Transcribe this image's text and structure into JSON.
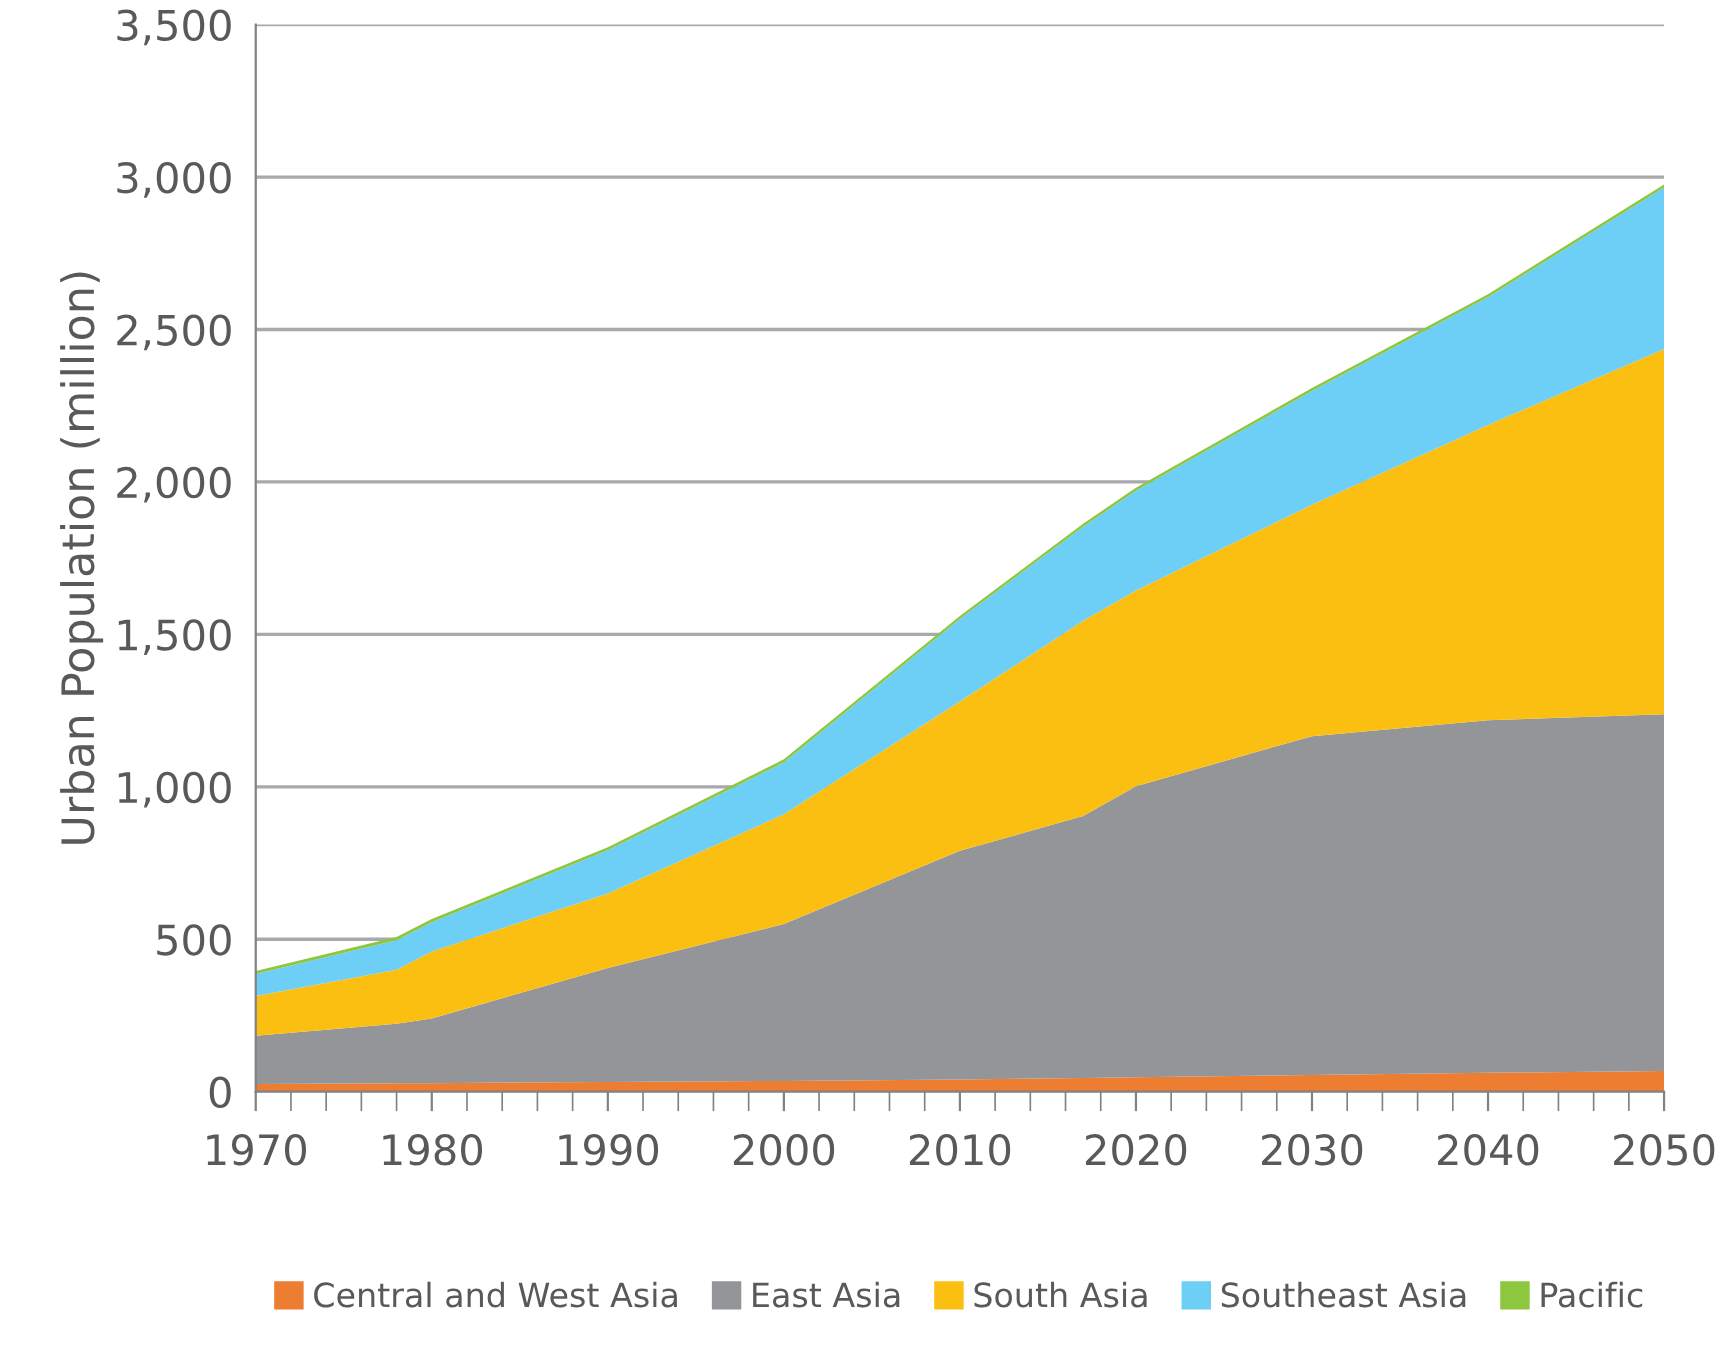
{
  "chart_data": {
    "type": "area",
    "stacked": true,
    "ylabel": "Urban Population (million)",
    "x": [
      1970,
      1978,
      1980,
      1990,
      2000,
      2010,
      2017,
      2020,
      2030,
      2040,
      2050
    ],
    "series": [
      {
        "name": "Central and West Asia",
        "color": "#ed7d31",
        "values": [
          25,
          28,
          28,
          32,
          35,
          40,
          45,
          47,
          55,
          62,
          68
        ]
      },
      {
        "name": "East Asia",
        "color": "#939598",
        "values": [
          158,
          195,
          212,
          374,
          515,
          750,
          859,
          955,
          1111,
          1156,
          1170
        ]
      },
      {
        "name": "South Asia",
        "color": "#fbbf12",
        "values": [
          131,
          177,
          220,
          244,
          360,
          490,
          641,
          642,
          759,
          969,
          1198
        ]
      },
      {
        "name": "Southeast Asia",
        "color": "#6dcff6",
        "values": [
          72,
          97,
          96,
          142,
          170,
          270,
          308,
          327,
          373,
          419,
          530
        ]
      },
      {
        "name": "Pacific",
        "color": "#8dc63f",
        "values": [
          10,
          10,
          10,
          10,
          10,
          10,
          10,
          10,
          10,
          10,
          10
        ]
      }
    ],
    "xlim": [
      1970,
      2050
    ],
    "xticks": [
      1970,
      1980,
      1990,
      2000,
      2010,
      2020,
      2030,
      2040,
      2050
    ],
    "ylim": [
      0,
      3500
    ],
    "yticks": [
      0,
      {
        "value": 500,
        "label": "500"
      },
      {
        "value": 1000,
        "label": "1,000"
      },
      {
        "value": 1500,
        "label": "1,500"
      },
      {
        "value": 2000,
        "label": "2,000"
      },
      {
        "value": 2500,
        "label": "2,500"
      },
      {
        "value": 3000,
        "label": "3,000"
      },
      {
        "value": 3500,
        "label": "3,500"
      }
    ],
    "grid": "y",
    "legend": "bottom"
  }
}
